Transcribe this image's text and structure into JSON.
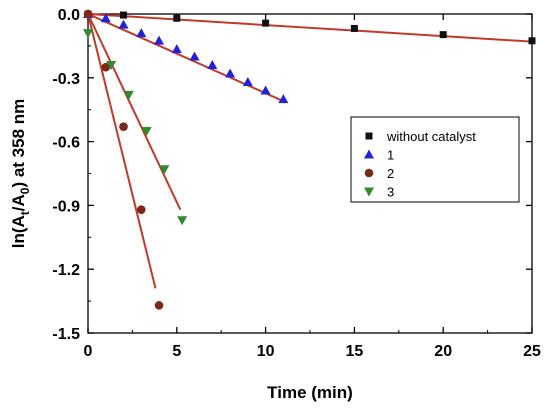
{
  "chart_data": {
    "type": "scatter",
    "title": "",
    "xlabel": "Time (min)",
    "ylabel_parts": [
      "ln(A",
      "t",
      "/A",
      "0",
      ") at 358 nm"
    ],
    "xlim": [
      0,
      25
    ],
    "ylim": [
      -1.5,
      0.0
    ],
    "xticks": [
      0,
      5,
      10,
      15,
      20,
      25
    ],
    "yticks": [
      0.0,
      -0.3,
      -0.6,
      -0.9,
      -1.2,
      -1.5
    ],
    "xtick_labels": [
      "0",
      "5",
      "10",
      "15",
      "20",
      "25"
    ],
    "ytick_labels": [
      "0.0",
      "-0.3",
      "-0.6",
      "-0.9",
      "-1.2",
      "-1.5"
    ],
    "grid": false,
    "legend_position": "right",
    "fit_color": "#c0392b",
    "series": [
      {
        "name": "without catalyst",
        "marker": "square",
        "color": "#111111",
        "x": [
          0,
          2,
          5,
          10,
          15,
          20,
          25
        ],
        "y": [
          0.0,
          -0.005,
          -0.02,
          -0.043,
          -0.068,
          -0.097,
          -0.126
        ],
        "fit": [
          [
            0,
            0.0
          ],
          [
            25,
            -0.13
          ]
        ]
      },
      {
        "name": "1",
        "marker": "triangle-up",
        "color": "#2323d6",
        "x": [
          0,
          1,
          2,
          3,
          4,
          5,
          6,
          7,
          8,
          9,
          10,
          11
        ],
        "y": [
          0.0,
          -0.02,
          -0.05,
          -0.09,
          -0.125,
          -0.165,
          -0.2,
          -0.24,
          -0.28,
          -0.32,
          -0.36,
          -0.4
        ],
        "fit": [
          [
            0,
            0.0
          ],
          [
            11,
            -0.41
          ]
        ]
      },
      {
        "name": "2",
        "marker": "circle",
        "color": "#7a2818",
        "x": [
          0,
          1,
          2,
          3,
          4
        ],
        "y": [
          0.0,
          -0.25,
          -0.53,
          -0.92,
          -1.37
        ],
        "fit": [
          [
            0,
            0.0
          ],
          [
            3.8,
            -1.29
          ]
        ]
      },
      {
        "name": "3",
        "marker": "triangle-down",
        "color": "#2e8b2e",
        "x": [
          0,
          1.3,
          2.3,
          3.3,
          4.3,
          5.3
        ],
        "y": [
          -0.09,
          -0.24,
          -0.38,
          -0.55,
          -0.73,
          -0.97
        ],
        "fit": [
          [
            0,
            0.0
          ],
          [
            5.2,
            -0.92
          ]
        ]
      }
    ]
  }
}
